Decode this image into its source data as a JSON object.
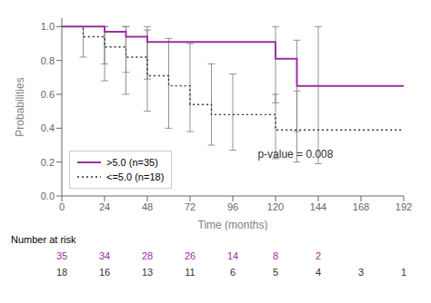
{
  "chart_data": {
    "type": "step",
    "xlabel": "Time (months)",
    "ylabel": "Probabilities",
    "xlim": [
      0,
      192
    ],
    "ylim": [
      0,
      1.05
    ],
    "xticks": [
      0,
      24,
      48,
      72,
      96,
      120,
      144,
      168,
      192
    ],
    "yticks": [
      {
        "value": 0,
        "label": "0.0"
      },
      0.2,
      0.4,
      0.6,
      0.8,
      {
        "value": 1,
        "label": "1.0"
      }
    ],
    "grid": false,
    "legend": "lower left",
    "series": [
      {
        "name": ">5.0 (n=35)",
        "color": "#9b30a0",
        "line_style": "solid",
        "x": [
          0,
          24,
          24,
          36,
          36,
          48,
          48,
          120,
          120,
          132,
          132,
          144,
          144,
          192
        ],
        "values": [
          1.0,
          1.0,
          0.97,
          0.97,
          0.94,
          0.94,
          0.91,
          0.91,
          0.81,
          0.81,
          0.65,
          0.65,
          0.65,
          0.65
        ],
        "ci_x": [
          24,
          36,
          48,
          120,
          132,
          144
        ],
        "ci_low": [
          0.78,
          0.73,
          0.69,
          0.55,
          0.38,
          0.19
        ],
        "ci_high": [
          1.0,
          1.0,
          1.0,
          1.0,
          0.92,
          1.0
        ],
        "at_risk": [
          35,
          34,
          28,
          26,
          14,
          8,
          2,
          null,
          null
        ]
      },
      {
        "name": "<=5.0 (n=18)",
        "color": "#333333",
        "line_style": "dotted",
        "x": [
          0,
          12,
          12,
          24,
          24,
          36,
          36,
          48,
          48,
          60,
          60,
          72,
          72,
          84,
          84,
          96,
          96,
          120,
          120,
          132,
          132,
          192
        ],
        "values": [
          1.0,
          1.0,
          0.94,
          0.94,
          0.88,
          0.88,
          0.82,
          0.82,
          0.71,
          0.71,
          0.65,
          0.65,
          0.54,
          0.54,
          0.48,
          0.48,
          0.48,
          0.48,
          0.39,
          0.39,
          0.39,
          0.39
        ],
        "ci_x": [
          12,
          24,
          36,
          48,
          60,
          72,
          84,
          96,
          120,
          132
        ],
        "ci_low": [
          0.82,
          0.68,
          0.6,
          0.5,
          0.4,
          0.38,
          0.3,
          0.27,
          0.22,
          0.2
        ],
        "ci_high": [
          1.0,
          1.0,
          1.0,
          0.98,
          0.93,
          0.9,
          0.78,
          0.72,
          0.6,
          0.62
        ],
        "at_risk": [
          18,
          16,
          13,
          11,
          6,
          5,
          4,
          3,
          1
        ]
      }
    ],
    "annotations": [
      {
        "text": "p-value = 0.008",
        "x": 110,
        "y": 0.25
      }
    ],
    "risk_label": "Number at risk",
    "risk_times": [
      0,
      24,
      48,
      72,
      96,
      120,
      144,
      168,
      192
    ]
  }
}
